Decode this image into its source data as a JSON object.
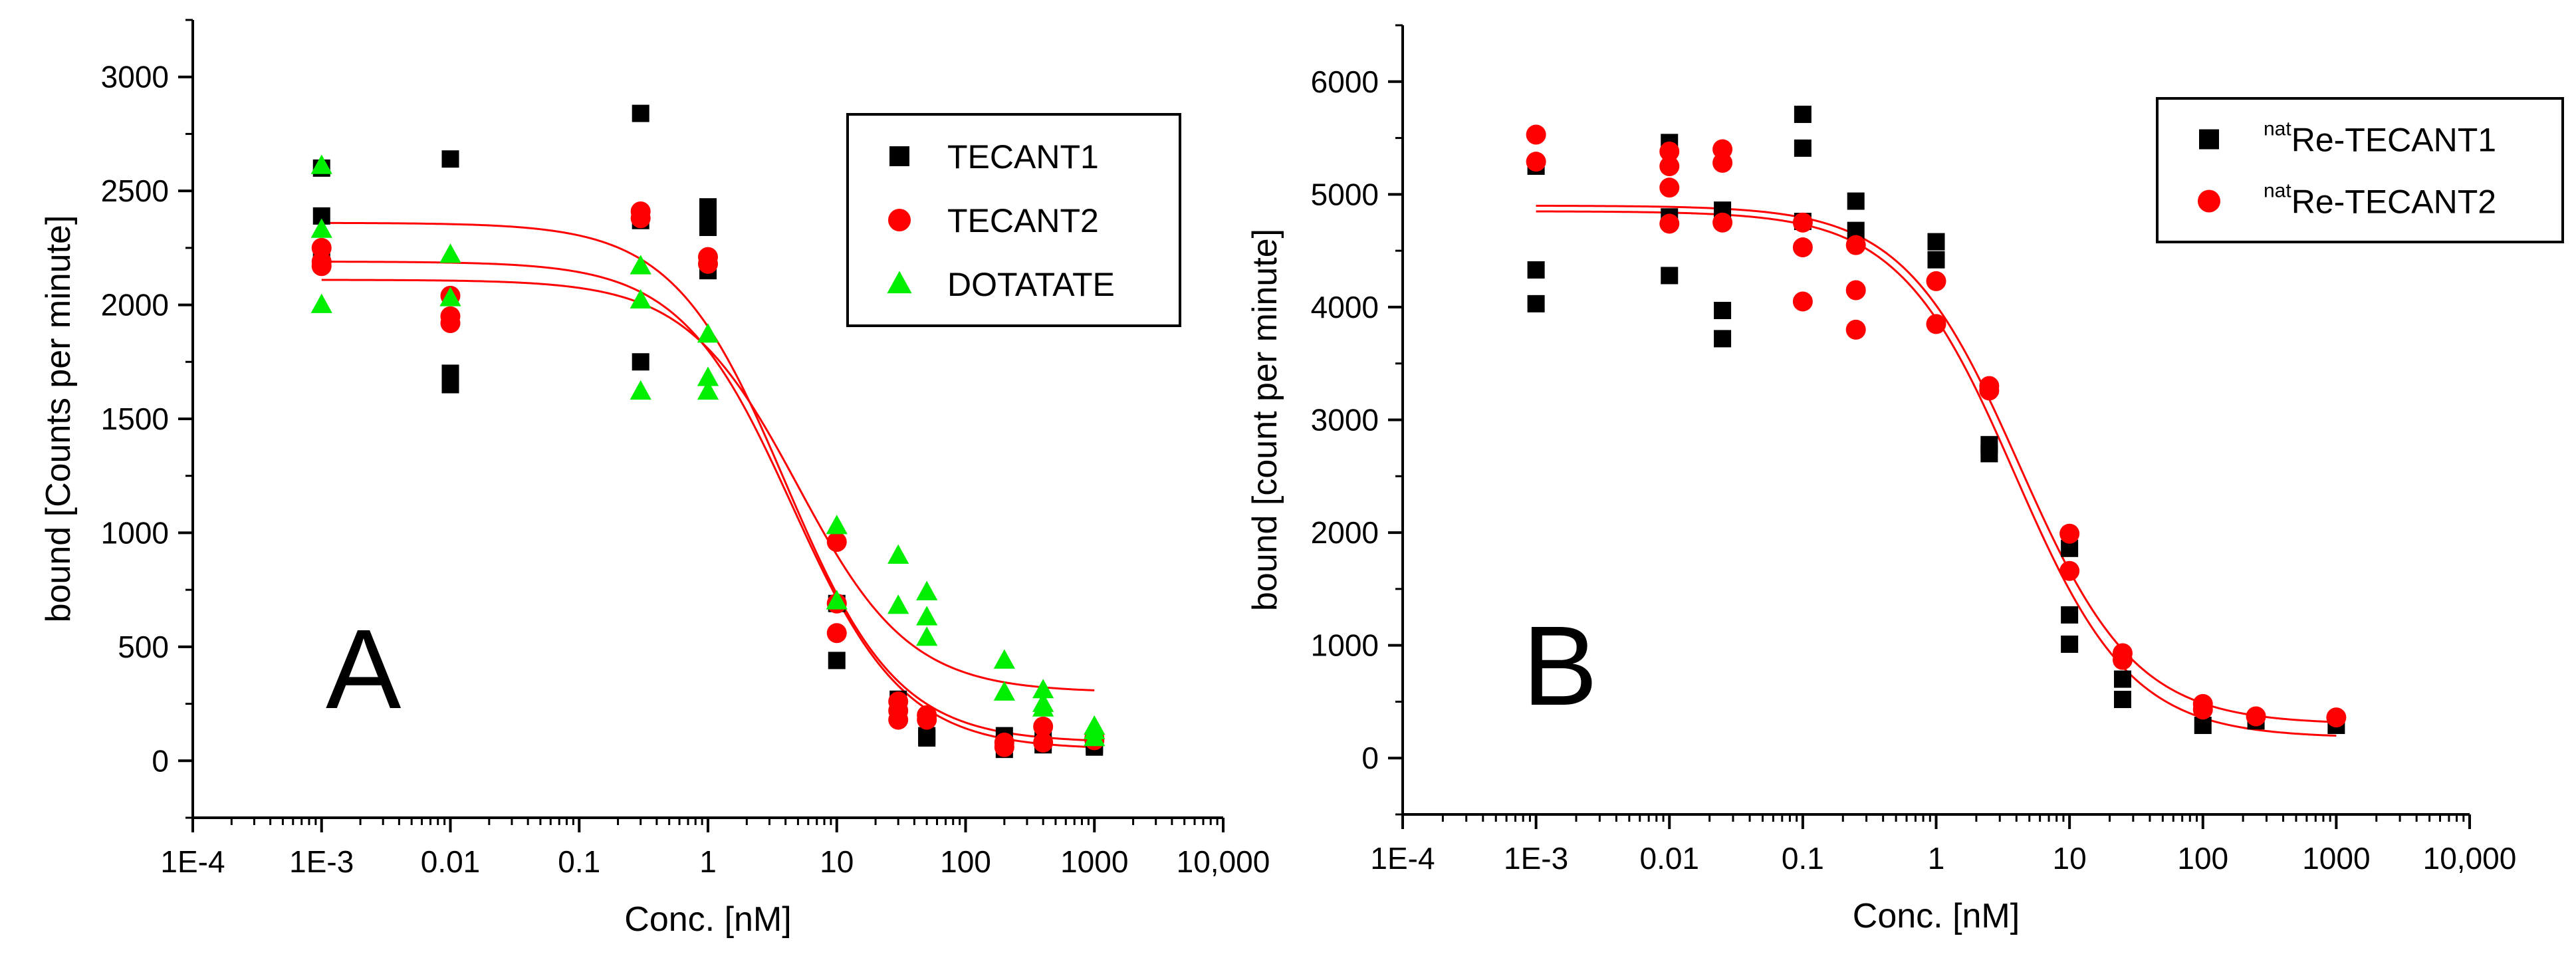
{
  "chart_data": [
    {
      "type": "scatter",
      "panel_label": "A",
      "xlabel": "Conc. [nM]",
      "ylabel": "bound [Counts per minute]",
      "x_scale": "log",
      "xlim": [
        0.0001,
        10000
      ],
      "ylim": [
        -250,
        3250
      ],
      "x_tick_labels": [
        "1E-4",
        "1E-3",
        "0.01",
        "0.1",
        "1",
        "10",
        "100",
        "1000",
        "10,000"
      ],
      "x_tick_values": [
        0.0001,
        0.001,
        0.01,
        0.1,
        1,
        10,
        100,
        1000,
        10000
      ],
      "y_ticks": [
        0,
        500,
        1000,
        1500,
        2000,
        2500,
        3000
      ],
      "grid": false,
      "legend_position": "top-right",
      "series": [
        {
          "name": "TECANT1",
          "color": "#000000",
          "marker": "square",
          "points": [
            [
              0.001,
              2600
            ],
            [
              0.001,
              2390
            ],
            [
              0.001,
              2230
            ],
            [
              0.01,
              2640
            ],
            [
              0.01,
              1700
            ],
            [
              0.01,
              1650
            ],
            [
              0.3,
              2840
            ],
            [
              0.3,
              2370
            ],
            [
              0.3,
              1750
            ],
            [
              1,
              2430
            ],
            [
              1,
              2400
            ],
            [
              1,
              2340
            ],
            [
              1,
              2150
            ],
            [
              10,
              690
            ],
            [
              10,
              440
            ],
            [
              30,
              270
            ],
            [
              30,
              220
            ],
            [
              50,
              110
            ],
            [
              50,
              100
            ],
            [
              200,
              110
            ],
            [
              200,
              50
            ],
            [
              400,
              90
            ],
            [
              400,
              70
            ],
            [
              1000,
              70
            ],
            [
              1000,
              60
            ]
          ],
          "fit": {
            "top": 2190,
            "bottom": 50,
            "ec50": 4.5,
            "hill": 1
          }
        },
        {
          "name": "TECANT2",
          "color": "#ff0000",
          "marker": "circle",
          "points": [
            [
              0.001,
              2250
            ],
            [
              0.001,
              2190
            ],
            [
              0.001,
              2170
            ],
            [
              0.01,
              2040
            ],
            [
              0.01,
              1950
            ],
            [
              0.01,
              1920
            ],
            [
              0.3,
              2410
            ],
            [
              0.3,
              2380
            ],
            [
              1,
              2210
            ],
            [
              1,
              2180
            ],
            [
              10,
              960
            ],
            [
              10,
              690
            ],
            [
              10,
              560
            ],
            [
              30,
              260
            ],
            [
              30,
              220
            ],
            [
              30,
              180
            ],
            [
              50,
              200
            ],
            [
              50,
              180
            ],
            [
              200,
              80
            ],
            [
              200,
              60
            ],
            [
              400,
              150
            ],
            [
              400,
              80
            ],
            [
              1000,
              100
            ],
            [
              1000,
              90
            ]
          ],
          "fit": {
            "top": 2360,
            "bottom": 80,
            "ec50": 4.0,
            "hill": 1
          }
        },
        {
          "name": "DOTATATE",
          "color": "#00ee00",
          "marker": "triangle",
          "points": [
            [
              0.001,
              2610
            ],
            [
              0.001,
              2330
            ],
            [
              0.001,
              2000
            ],
            [
              0.01,
              2220
            ],
            [
              0.01,
              2030
            ],
            [
              0.3,
              2170
            ],
            [
              0.3,
              2020
            ],
            [
              0.3,
              1620
            ],
            [
              1,
              1870
            ],
            [
              1,
              1680
            ],
            [
              1,
              1620
            ],
            [
              10,
              1030
            ],
            [
              10,
              700
            ],
            [
              30,
              900
            ],
            [
              30,
              680
            ],
            [
              50,
              740
            ],
            [
              50,
              630
            ],
            [
              50,
              540
            ],
            [
              200,
              440
            ],
            [
              200,
              300
            ],
            [
              400,
              310
            ],
            [
              400,
              250
            ],
            [
              400,
              230
            ],
            [
              1000,
              150
            ],
            [
              1000,
              130
            ],
            [
              1000,
              100
            ]
          ],
          "fit": {
            "top": 2110,
            "bottom": 300,
            "ec50": 5.0,
            "hill": 1
          }
        }
      ]
    },
    {
      "type": "scatter",
      "panel_label": "B",
      "xlabel": "Conc. [nM]",
      "ylabel": "bound [count per minute]",
      "x_scale": "log",
      "xlim": [
        0.0001,
        10000
      ],
      "ylim": [
        -500,
        6500
      ],
      "x_tick_labels": [
        "1E-4",
        "1E-3",
        "0.01",
        "0.1",
        "1",
        "10",
        "100",
        "1000",
        "10,000"
      ],
      "x_tick_values": [
        0.0001,
        0.001,
        0.01,
        0.1,
        1,
        10,
        100,
        1000,
        10000
      ],
      "y_ticks": [
        0,
        1000,
        2000,
        3000,
        4000,
        5000,
        6000
      ],
      "grid": false,
      "legend_position": "top-right",
      "series": [
        {
          "name": "Re-TECANT1",
          "name_superscript": "nat",
          "color": "#000000",
          "marker": "square",
          "points": [
            [
              0.001,
              5250
            ],
            [
              0.001,
              4330
            ],
            [
              0.001,
              4030
            ],
            [
              0.01,
              5460
            ],
            [
              0.01,
              4800
            ],
            [
              0.01,
              4280
            ],
            [
              0.025,
              4860
            ],
            [
              0.025,
              3970
            ],
            [
              0.025,
              3720
            ],
            [
              0.1,
              5710
            ],
            [
              0.1,
              5410
            ],
            [
              0.1,
              4760
            ],
            [
              0.25,
              4940
            ],
            [
              0.25,
              4680
            ],
            [
              1,
              4580
            ],
            [
              1,
              4420
            ],
            [
              2.5,
              2780
            ],
            [
              2.5,
              2700
            ],
            [
              10,
              1860
            ],
            [
              10,
              1270
            ],
            [
              10,
              1010
            ],
            [
              25,
              700
            ],
            [
              25,
              520
            ],
            [
              100,
              290
            ],
            [
              250,
              330
            ],
            [
              1000,
              290
            ]
          ],
          "fit": {
            "top": 4850,
            "bottom": 180,
            "ec50": 3.9,
            "hill": 1
          }
        },
        {
          "name": "Re-TECANT2",
          "name_superscript": "nat",
          "color": "#ff0000",
          "marker": "circle",
          "points": [
            [
              0.001,
              5530
            ],
            [
              0.001,
              5290
            ],
            [
              0.01,
              5380
            ],
            [
              0.01,
              5250
            ],
            [
              0.01,
              5060
            ],
            [
              0.01,
              4740
            ],
            [
              0.025,
              5400
            ],
            [
              0.025,
              5280
            ],
            [
              0.025,
              4750
            ],
            [
              0.1,
              4750
            ],
            [
              0.1,
              4530
            ],
            [
              0.1,
              4050
            ],
            [
              0.25,
              4550
            ],
            [
              0.25,
              4150
            ],
            [
              0.25,
              3800
            ],
            [
              1,
              4230
            ],
            [
              1,
              3850
            ],
            [
              2.5,
              3300
            ],
            [
              2.5,
              3260
            ],
            [
              10,
              1990
            ],
            [
              10,
              1660
            ],
            [
              25,
              930
            ],
            [
              25,
              870
            ],
            [
              100,
              480
            ],
            [
              100,
              430
            ],
            [
              250,
              370
            ],
            [
              1000,
              360
            ]
          ],
          "fit": {
            "top": 4900,
            "bottom": 300,
            "ec50": 4.2,
            "hill": 1
          }
        }
      ]
    }
  ]
}
